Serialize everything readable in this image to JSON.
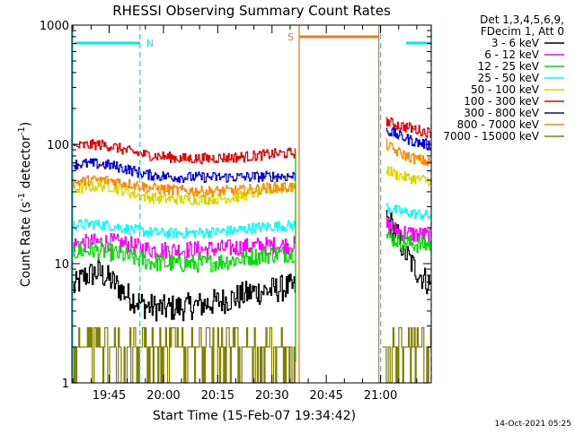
{
  "chart_data": {
    "type": "line",
    "title": "RHESSI Observing Summary Count Rates",
    "xlabel": "Start Time (15-Feb-07 19:34:42)",
    "ylabel": "Count Rate (s⁻¹ detector⁻¹)",
    "ylabel_parts": {
      "base": "Count Rate (s",
      "sup1": "-1",
      "mid": " detector",
      "sup2": "-1",
      "end": ")"
    },
    "yscale": "log",
    "ylim": [
      1,
      1000
    ],
    "xlim": [
      "19:34:42",
      "21:14:00"
    ],
    "xticks": [
      "19:45",
      "20:00",
      "20:15",
      "20:30",
      "20:45",
      "21:00"
    ],
    "yticks": [
      "1",
      "10",
      "100",
      "1000"
    ],
    "legend_header": [
      "Det 1,3,4,5,6,9,",
      "FDecim 1, Att 0"
    ],
    "legend_position": "right",
    "timestamp": "14-Oct-2021 05:25",
    "flags": [
      {
        "name": "N",
        "color": "#00e8e8",
        "segments": [
          [
            "19:34:42",
            "19:53:30"
          ],
          [
            "21:07:00",
            "21:14:00"
          ]
        ]
      },
      {
        "name": "S",
        "color": "#f07820",
        "segments": [
          [
            "20:37:30",
            "20:59:30"
          ]
        ]
      }
    ],
    "boundaries": [
      {
        "time": "19:53:30",
        "color": "#00e8e8",
        "style": "dashed"
      },
      {
        "time": "20:37:30",
        "color": "#f07820",
        "style": "solid"
      },
      {
        "time": "20:59:30",
        "color": "#f07820",
        "style": "solid"
      },
      {
        "time": "21:00:00",
        "color": "#00e8e8",
        "style": "dashed"
      },
      {
        "time": "21:14:00",
        "color": "#00e8e8",
        "style": "dashed"
      }
    ],
    "series": [
      {
        "name": "3 - 6 keV",
        "color": "#000000",
        "seg1": [
          [
            "19:35",
            6.2
          ],
          [
            "19:38",
            7.8
          ],
          [
            "19:42",
            8.5
          ],
          [
            "19:46",
            7.0
          ],
          [
            "19:50",
            5.4
          ],
          [
            "19:55",
            4.4
          ],
          [
            "20:00",
            4.2
          ],
          [
            "20:05",
            4.3
          ],
          [
            "20:10",
            4.5
          ],
          [
            "20:15",
            4.8
          ],
          [
            "20:20",
            5.2
          ],
          [
            "20:25",
            5.8
          ],
          [
            "20:30",
            6.0
          ],
          [
            "20:34",
            6.3
          ],
          [
            "20:36:30",
            6.3
          ]
        ],
        "seg2": [
          [
            "21:01:30",
            24
          ],
          [
            "21:03",
            21
          ],
          [
            "21:05",
            16
          ],
          [
            "21:07",
            12
          ],
          [
            "21:09",
            9.5
          ],
          [
            "21:11",
            8.0
          ],
          [
            "21:14",
            6.5
          ]
        ]
      },
      {
        "name": "6 - 12 keV",
        "color": "#ff00ff",
        "seg1": [
          [
            "19:35",
            14.5
          ],
          [
            "19:40",
            15
          ],
          [
            "19:45",
            15.2
          ],
          [
            "19:50",
            14.5
          ],
          [
            "19:55",
            13.2
          ],
          [
            "20:00",
            13.0
          ],
          [
            "20:05",
            13.0
          ],
          [
            "20:10",
            13.1
          ],
          [
            "20:15",
            13.3
          ],
          [
            "20:20",
            13.6
          ],
          [
            "20:25",
            14.0
          ],
          [
            "20:30",
            14.2
          ],
          [
            "20:36:30",
            14.3
          ]
        ],
        "seg2": [
          [
            "21:01:30",
            21
          ],
          [
            "21:04",
            19
          ],
          [
            "21:07",
            18
          ],
          [
            "21:10",
            17.5
          ],
          [
            "21:14",
            17
          ]
        ]
      },
      {
        "name": "12 - 25 keV",
        "color": "#00e000",
        "seg1": [
          [
            "19:35",
            12.5
          ],
          [
            "19:40",
            13
          ],
          [
            "19:45",
            12.5
          ],
          [
            "19:50",
            11.5
          ],
          [
            "19:55",
            10.5
          ],
          [
            "20:00",
            10.0
          ],
          [
            "20:05",
            10.0
          ],
          [
            "20:10",
            10.0
          ],
          [
            "20:15",
            10.3
          ],
          [
            "20:20",
            10.8
          ],
          [
            "20:25",
            11.5
          ],
          [
            "20:30",
            12.0
          ],
          [
            "20:36:30",
            12.2
          ]
        ],
        "seg2": [
          [
            "21:01:30",
            17
          ],
          [
            "21:04",
            16
          ],
          [
            "21:07",
            15
          ],
          [
            "21:10",
            14.5
          ],
          [
            "21:14",
            14.5
          ]
        ]
      },
      {
        "name": "25 - 50 keV",
        "color": "#00ffff",
        "seg1": [
          [
            "19:35",
            21
          ],
          [
            "19:40",
            21.5
          ],
          [
            "19:45",
            21
          ],
          [
            "19:50",
            19.5
          ],
          [
            "19:55",
            18.5
          ],
          [
            "20:00",
            18.0
          ],
          [
            "20:05",
            18.0
          ],
          [
            "20:10",
            18.2
          ],
          [
            "20:15",
            18.5
          ],
          [
            "20:20",
            19
          ],
          [
            "20:25",
            20
          ],
          [
            "20:30",
            20.5
          ],
          [
            "20:36:30",
            21
          ]
        ],
        "seg2": [
          [
            "21:01:30",
            30
          ],
          [
            "21:04",
            28
          ],
          [
            "21:07",
            27
          ],
          [
            "21:10",
            26
          ],
          [
            "21:14",
            25
          ]
        ]
      },
      {
        "name": "50 - 100 keV",
        "color": "#d8d800",
        "seg1": [
          [
            "19:35",
            42
          ],
          [
            "19:40",
            44
          ],
          [
            "19:44",
            45
          ],
          [
            "19:48",
            42
          ],
          [
            "19:52",
            38
          ],
          [
            "19:56",
            36
          ],
          [
            "20:00",
            35
          ],
          [
            "20:05",
            34.5
          ],
          [
            "20:10",
            34.5
          ],
          [
            "20:15",
            35
          ],
          [
            "20:20",
            36
          ],
          [
            "20:25",
            39
          ],
          [
            "20:30",
            42
          ],
          [
            "20:34",
            43
          ],
          [
            "20:36:30",
            43
          ]
        ],
        "seg2": [
          [
            "21:01:30",
            62
          ],
          [
            "21:04",
            56
          ],
          [
            "21:07",
            53
          ],
          [
            "21:10",
            51
          ],
          [
            "21:14",
            50
          ]
        ]
      },
      {
        "name": "100 - 300 keV",
        "color": "#ee0000",
        "seg1": [
          [
            "19:35",
            95
          ],
          [
            "19:38",
            98
          ],
          [
            "19:42",
            100
          ],
          [
            "19:46",
            96
          ],
          [
            "19:50",
            88
          ],
          [
            "19:55",
            82
          ],
          [
            "20:00",
            79
          ],
          [
            "20:05",
            76
          ],
          [
            "20:10",
            76
          ],
          [
            "20:15",
            77
          ],
          [
            "20:20",
            78
          ],
          [
            "20:25",
            80
          ],
          [
            "20:30",
            83
          ],
          [
            "20:34",
            84
          ],
          [
            "20:36:30",
            85
          ]
        ],
        "seg2": [
          [
            "21:01:30",
            158
          ],
          [
            "21:03",
            150
          ],
          [
            "21:06",
            142
          ],
          [
            "21:09",
            135
          ],
          [
            "21:12",
            128
          ],
          [
            "21:14",
            125
          ]
        ]
      },
      {
        "name": "300 - 800 keV",
        "color": "#0000ee",
        "seg1": [
          [
            "19:35",
            68
          ],
          [
            "19:40",
            69
          ],
          [
            "19:45",
            67
          ],
          [
            "19:50",
            62
          ],
          [
            "19:55",
            56
          ],
          [
            "20:00",
            54
          ],
          [
            "20:05",
            53
          ],
          [
            "20:10",
            53
          ],
          [
            "20:15",
            53
          ],
          [
            "20:20",
            53
          ],
          [
            "20:25",
            53.5
          ],
          [
            "20:30",
            54
          ],
          [
            "20:36:30",
            54
          ]
        ],
        "seg2": [
          [
            "21:01:30",
            132
          ],
          [
            "21:04",
            122
          ],
          [
            "21:07",
            112
          ],
          [
            "21:10",
            104
          ],
          [
            "21:14",
            98
          ]
        ]
      },
      {
        "name": "800 - 7000 keV",
        "color": "#ff8800",
        "seg1": [
          [
            "19:35",
            48
          ],
          [
            "19:40",
            50
          ],
          [
            "19:45",
            50
          ],
          [
            "19:50",
            47
          ],
          [
            "19:55",
            44
          ],
          [
            "20:00",
            42
          ],
          [
            "20:05",
            41
          ],
          [
            "20:10",
            40.5
          ],
          [
            "20:15",
            40.5
          ],
          [
            "20:20",
            41
          ],
          [
            "20:25",
            42
          ],
          [
            "20:30",
            43.5
          ],
          [
            "20:36:30",
            44
          ]
        ],
        "seg2": [
          [
            "21:01:30",
            100
          ],
          [
            "21:04",
            88
          ],
          [
            "21:07",
            80
          ],
          [
            "21:10",
            75
          ],
          [
            "21:14",
            70
          ]
        ]
      },
      {
        "name": "7000 - 15000 keV",
        "color": "#808000",
        "seg1": [
          [
            "19:35",
            2
          ],
          [
            "20:36:30",
            2
          ]
        ],
        "seg2": [
          [
            "21:00:30",
            2
          ],
          [
            "21:14",
            2
          ]
        ]
      }
    ]
  }
}
